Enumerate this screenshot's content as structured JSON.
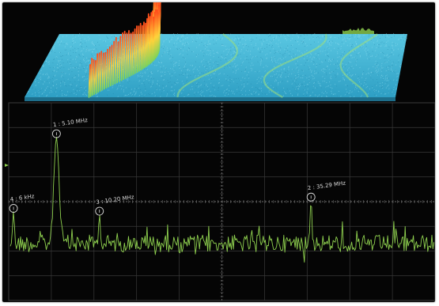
{
  "colors": {
    "background": "#050505",
    "grid": "#3a3a3a",
    "grid_center": "#6a6a6a",
    "trace": "#8fd14f",
    "waterfall_floor": "#3fb7d8",
    "waterfall_peak": "#ff5a1f",
    "marker": "#d9d9d9"
  },
  "spectrum": {
    "markers": [
      {
        "id": "1",
        "label": "1 : 5.10 MHz",
        "freq_mhz": 5.1,
        "level": 0.78
      },
      {
        "id": "2",
        "label": "2 : 35.29 MHz",
        "freq_mhz": 35.29,
        "level": 0.33
      },
      {
        "id": "3",
        "label": "3 : 10.20 MHz",
        "freq_mhz": 10.2,
        "level": 0.23
      },
      {
        "id": "4",
        "label": "4 : 6 kHz",
        "freq_mhz": 0.006,
        "level": 0.25
      }
    ]
  }
}
